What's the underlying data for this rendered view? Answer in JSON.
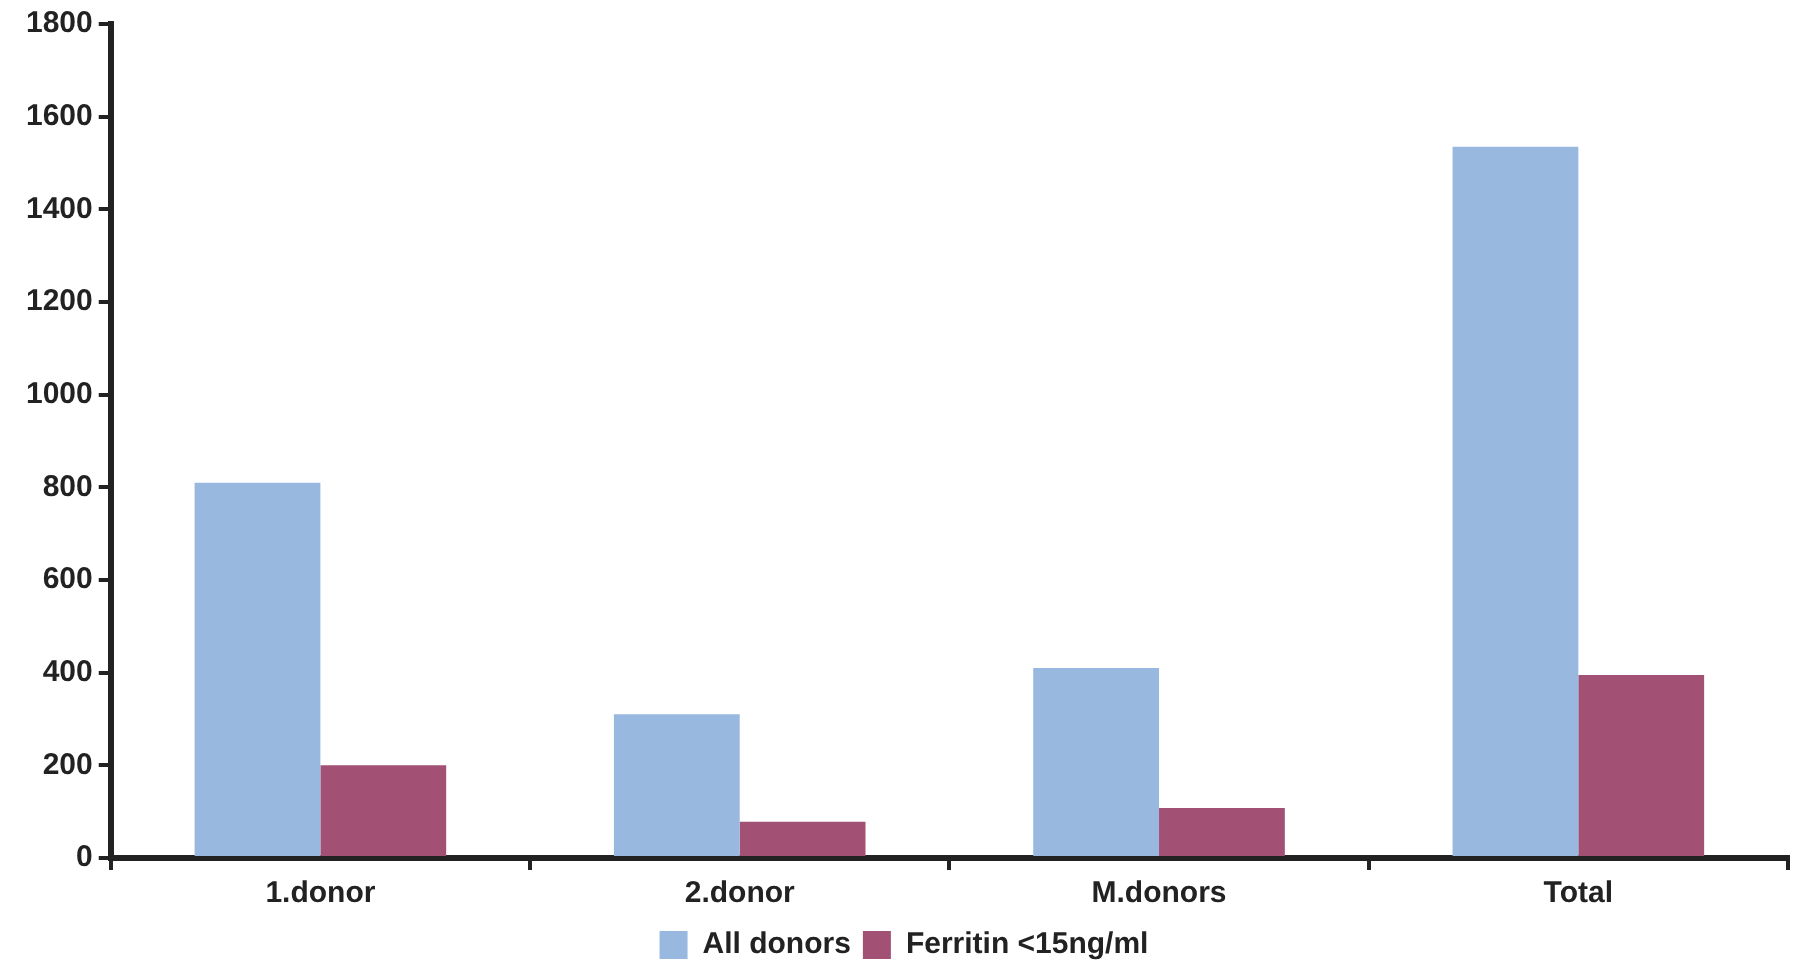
{
  "chart_data": {
    "type": "bar",
    "categories": [
      "1.donor",
      "2.donor",
      "M.donors",
      "Total"
    ],
    "series": [
      {
        "name": "All donors",
        "color": "#98b8e0",
        "values": [
          810,
          310,
          410,
          1535
        ]
      },
      {
        "name": "Ferritin <15ng/ml",
        "color": "#a25073",
        "values": [
          200,
          78,
          108,
          395
        ]
      }
    ],
    "ylim": [
      0,
      1800
    ],
    "yticks": [
      0,
      200,
      400,
      600,
      800,
      1000,
      1200,
      1400,
      1600,
      1800
    ],
    "grid": false,
    "legend": "bottom"
  }
}
